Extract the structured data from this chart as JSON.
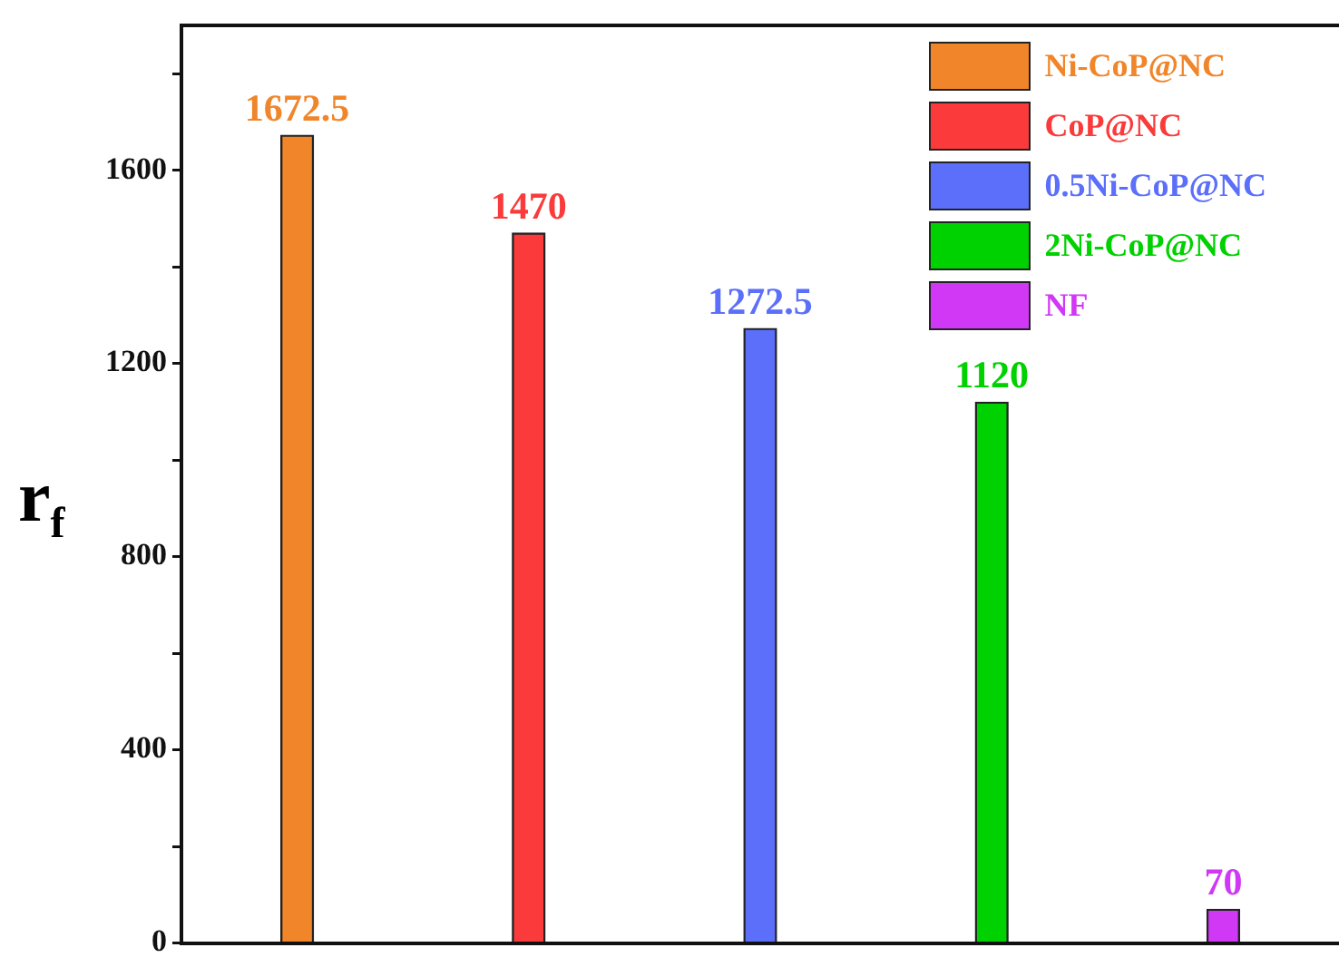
{
  "chart_data": {
    "type": "bar",
    "ylabel": "r$_{f}$",
    "categories": [
      null,
      null,
      null,
      null,
      null
    ],
    "series": [
      {
        "name": "Ni-CoP@NC",
        "color": "#f0852a",
        "values": [
          1672.5,
          null,
          null,
          null,
          null
        ]
      },
      {
        "name": "CoP@NC",
        "color": "#fb3b3b",
        "values": [
          null,
          1470,
          null,
          null,
          null
        ]
      },
      {
        "name": "0.5Ni-CoP@NC",
        "color": "#5b6ffb",
        "values": [
          null,
          null,
          1272.5,
          null,
          null
        ]
      },
      {
        "name": "2Ni-CoP@NC",
        "color": "#00d100",
        "values": [
          null,
          null,
          null,
          1120,
          null
        ]
      },
      {
        "name": "NF",
        "color": "#d038f5",
        "values": [
          null,
          null,
          null,
          null,
          70
        ]
      }
    ],
    "ylim": [
      0,
      1900
    ],
    "yticks": [
      0,
      {
        "value": 200,
        "label": null
      },
      400,
      {
        "value": 600,
        "label": null
      },
      800,
      {
        "value": 1000,
        "label": null
      },
      1200,
      {
        "value": 1400,
        "label": null
      },
      1600,
      {
        "value": 1800,
        "label": null
      }
    ],
    "data_labels": true,
    "legend": "top right",
    "tick_labels": "y"
  }
}
